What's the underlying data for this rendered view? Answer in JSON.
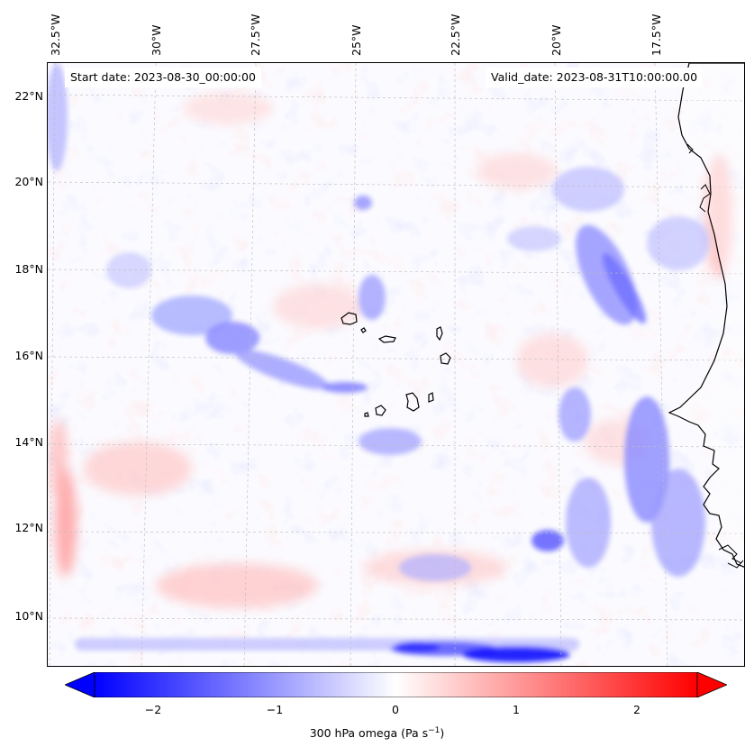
{
  "map": {
    "lon_labels": [
      "32.5°W",
      "30°W",
      "27.5°W",
      "25°W",
      "22.5°W",
      "20°W",
      "17.5°W"
    ],
    "lat_labels": [
      "22°N",
      "20°N",
      "18°N",
      "16°N",
      "14°N",
      "12°N",
      "10°N"
    ],
    "start_date": "Start date: 2023-08-30_00:00:00",
    "valid_date": "Valid_date: 2023-08-31T10:00:00.00",
    "field_colormap": "bwr",
    "coastline_color": "#000000",
    "gridlines": "dashed"
  },
  "colorbar": {
    "ticks": [
      "−2",
      "−1",
      "0",
      "1",
      "2"
    ],
    "label_prefix": "300 hPa omega (Pa s",
    "label_exp": "−1",
    "label_suffix": ")",
    "min_color": "#0000ff",
    "mid_color": "#ffffff",
    "max_color": "#ff0000",
    "extend": "both"
  }
}
